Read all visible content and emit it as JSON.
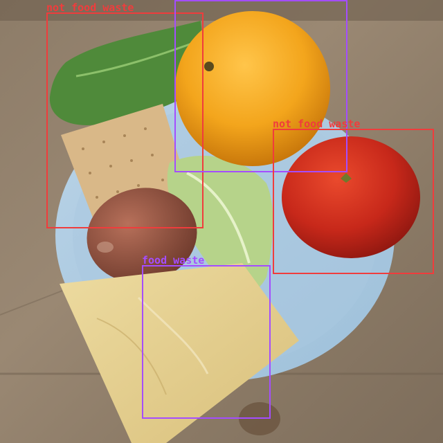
{
  "colors": {
    "not_food_waste": "#f03c3c",
    "food_waste": "#a44dff"
  },
  "image": {
    "subject": "plate with lettuce, cracker, orange, tomato, egg and cheese slice on cardboard"
  },
  "detections": [
    {
      "label": "not_food_waste"
    },
    {
      "label": "food_waste"
    },
    {
      "label": "not_food_waste"
    },
    {
      "label": "food_waste"
    }
  ]
}
